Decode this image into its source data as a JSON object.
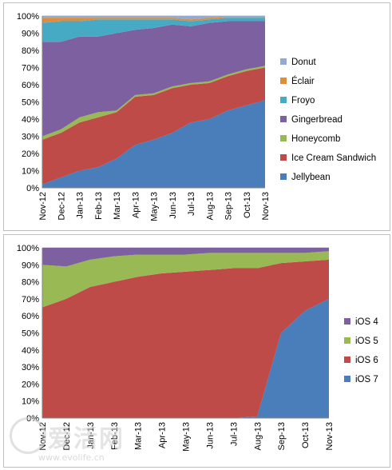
{
  "chart_data": [
    {
      "type": "area",
      "stacked": true,
      "percent": true,
      "categories": [
        "Nov-12",
        "Dec-12",
        "Jan-13",
        "Feb-13",
        "Mar-13",
        "Apr-13",
        "May-13",
        "Jun-13",
        "Jul-13",
        "Aug-13",
        "Sep-13",
        "Oct-13",
        "Nov-13"
      ],
      "ylim": [
        0,
        100
      ],
      "yticks": [
        "0%",
        "10%",
        "20%",
        "30%",
        "40%",
        "50%",
        "60%",
        "70%",
        "80%",
        "90%",
        "100%"
      ],
      "grid": true,
      "legend_position": "right",
      "series": [
        {
          "name": "Jellybean",
          "color": "#4a7ebb",
          "values": [
            2,
            6,
            10,
            12,
            17,
            25,
            28,
            32,
            38,
            40,
            45,
            48,
            51
          ]
        },
        {
          "name": "Ice Cream Sandwich",
          "color": "#be4b48",
          "values": [
            26,
            26,
            28,
            29,
            27,
            28,
            26,
            26,
            22,
            21,
            20,
            20,
            19
          ]
        },
        {
          "name": "Honeycomb",
          "color": "#98b954",
          "values": [
            2,
            2,
            3,
            3,
            1,
            1,
            1,
            1,
            1,
            1,
            1,
            1,
            1
          ]
        },
        {
          "name": "Gingerbread",
          "color": "#7d60a0",
          "values": [
            55,
            51,
            47,
            44,
            45,
            38,
            38,
            36,
            33,
            34,
            31,
            28,
            26
          ]
        },
        {
          "name": "Froyo",
          "color": "#46aac5",
          "values": [
            11,
            12,
            9,
            10,
            8,
            6,
            5,
            3,
            3,
            2,
            2,
            2,
            2
          ]
        },
        {
          "name": "Éclair",
          "color": "#db8e3f",
          "values": [
            3,
            2,
            2,
            1,
            1,
            1,
            1,
            1,
            1,
            1,
            0.5,
            0.5,
            0.5
          ]
        },
        {
          "name": "Donut",
          "color": "#93a9cf",
          "values": [
            1,
            1,
            1,
            1,
            1,
            1,
            1,
            1,
            2,
            1,
            0.5,
            0.5,
            0.5
          ]
        }
      ]
    },
    {
      "type": "area",
      "stacked": true,
      "percent": true,
      "categories": [
        "Nov-12",
        "Dec-12",
        "Jan-13",
        "Feb-13",
        "Mar-13",
        "Apr-13",
        "May-13",
        "Jun-13",
        "Jul-13",
        "Aug-13",
        "Sep-13",
        "Oct-13",
        "Nov-13"
      ],
      "ylim": [
        0,
        100
      ],
      "yticks": [
        "0%",
        "10%",
        "20%",
        "30%",
        "40%",
        "50%",
        "60%",
        "70%",
        "80%",
        "90%",
        "100%"
      ],
      "grid": true,
      "legend_position": "right",
      "series": [
        {
          "name": "iOS 7",
          "color": "#4a7ebb",
          "values": [
            0,
            0,
            0,
            0,
            0,
            0,
            0,
            0,
            0,
            1,
            50,
            63,
            70
          ]
        },
        {
          "name": "iOS 6",
          "color": "#be4b48",
          "values": [
            65,
            70,
            77,
            80,
            83,
            85,
            86,
            87,
            88,
            87,
            41,
            29,
            23
          ]
        },
        {
          "name": "iOS 5",
          "color": "#98b954",
          "values": [
            25,
            19,
            16,
            15,
            13,
            11,
            10,
            10,
            9,
            9,
            6,
            5,
            5
          ]
        },
        {
          "name": "iOS 4",
          "color": "#7d60a0",
          "values": [
            10,
            11,
            7,
            5,
            4,
            4,
            4,
            3,
            3,
            3,
            3,
            3,
            2
          ]
        }
      ]
    }
  ],
  "watermark": {
    "text": "爱活网",
    "url": "www.evolife.cn"
  }
}
